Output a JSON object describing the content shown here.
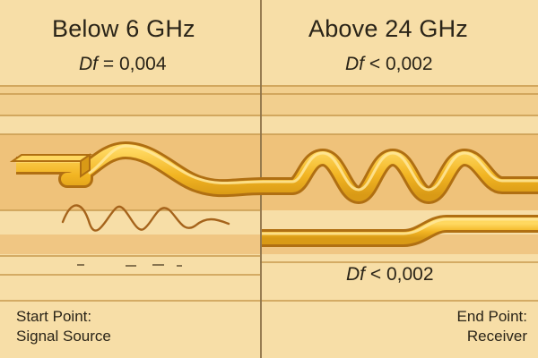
{
  "panels": {
    "left": {
      "heading": "Below 6 GHz",
      "df_symbol": "Df",
      "df_relation": "= 0,004"
    },
    "right": {
      "heading": "Above 24 GHz",
      "df_symbol": "Df",
      "df_relation": "< 0,002",
      "lower_df_symbol": "Df",
      "lower_df_relation": "< 0,002"
    }
  },
  "labels": {
    "start": {
      "line1": "Start Point:",
      "line2": "Signal Source"
    },
    "end": {
      "line1": "End Point:",
      "line2": "Receiver"
    }
  },
  "colors": {
    "background": "#f7dea7",
    "band_light": "#f2cf8e",
    "band_mid": "#efc27a",
    "trace_gold": "#f2b523",
    "trace_shade": "#c98b0f",
    "trace_dark": "#b06f12",
    "ink": "#2a2418"
  }
}
